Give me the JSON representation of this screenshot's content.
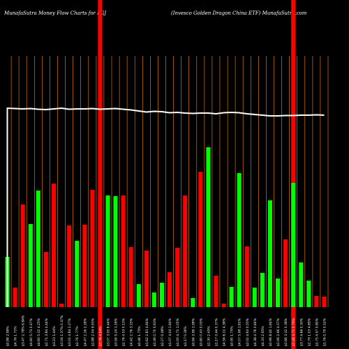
{
  "header": {
    "left": "MunafaSutra  Money Flow  Charts for PGJ",
    "right": "(Invesco  Golden  Dragon  China  ETF) MunafaSutra.com"
  },
  "colors": {
    "background": "#000000",
    "up": "#00ff00",
    "down": "#ff0000",
    "gridline": "#ff8c00",
    "price_line": "#ffffff",
    "highlight": "#ff0000",
    "label_text": "#ffffff"
  },
  "chart_data": {
    "type": "bar",
    "title": "",
    "categories": [
      "$0.88 2.98%",
      "$4.76 1.72%",
      "$3.47 2.78% 6.84%",
      "$4.60 5.73 0.47%",
      "$4.60 5.32 4.25%",
      "$2.71 3.84 4.44%",
      "$3.23 1.44%",
      "$1.04 1.37% 0.47%",
      "$3.01 4.84 2.27%",
      "$2.76 1.77%",
      "$4.47 2.16 2.28%",
      "$2.88 2.04 9.93%",
      "$3.76 4.04%",
      "$3.07 3.00 8.44%",
      "$3.94 5.24 1.18%",
      "$2.76 4.53 0.13%",
      "$4.42 2.76 3.25%",
      "$0.46 1.75%",
      "$1.62 2.83 4.84%",
      "$1.46 0.70 0.63%",
      "$2.27 0.48%",
      "$1.07 4.04 1.84%",
      "$1.00 4.71 1.05%",
      "$1.17 0.36%",
      "$0.84 3.96 1.98%",
      "$0.80 0.43 0.05%",
      "$2.30 2.45%",
      "$1.17 0.44 0.37%",
      "$4.56 6.11 4.38%",
      "$0.90 1.75%",
      "$4.07 5.98 1.81%",
      "$2.02 4.63 0.55%",
      "$4.38 4.76 0.84%",
      "$4.33 2.95%",
      "$0.96 8.40 1.84%",
      "$2.06 2.96 4.57%",
      "$2.66 3.32 0.38%",
      "$2.48 3.71 0.79%",
      "$3.77 4.66 0.30%",
      "$2.79 1.03 4.89%",
      "$1.75 4.57 0.80%",
      "$1.76 0.79 0.52%"
    ],
    "values": [
      72,
      28,
      147,
      119,
      167,
      79,
      177,
      5,
      117,
      95,
      118,
      168,
      159,
      160,
      159,
      160,
      86,
      33,
      81,
      21,
      35,
      50,
      85,
      160,
      13,
      194,
      229,
      45,
      5,
      29,
      192,
      87,
      28,
      49,
      153,
      41,
      97,
      178,
      64,
      38,
      16,
      15
    ],
    "directions": [
      "up",
      "down",
      "down",
      "up",
      "up",
      "down",
      "down",
      "down",
      "down",
      "up",
      "down",
      "down",
      "down",
      "up",
      "up",
      "down",
      "down",
      "up",
      "down",
      "up",
      "up",
      "down",
      "down",
      "down",
      "up",
      "down",
      "up",
      "down",
      "down",
      "up",
      "up",
      "down",
      "up",
      "up",
      "up",
      "up",
      "down",
      "up",
      "up",
      "up",
      "down",
      "down"
    ],
    "price_line": [
      1.0,
      0.99,
      0.98,
      0.99,
      0.97,
      0.96,
      0.98,
      1.0,
      0.97,
      0.98,
      0.98,
      0.99,
      0.97,
      0.98,
      0.99,
      0.97,
      0.95,
      0.92,
      0.89,
      0.91,
      0.9,
      0.87,
      0.88,
      0.86,
      0.85,
      0.86,
      0.86,
      0.84,
      0.87,
      0.88,
      0.87,
      0.84,
      0.82,
      0.8,
      0.78,
      0.78,
      0.79,
      0.79,
      0.8,
      0.8,
      0.81,
      0.8
    ],
    "highlight_columns": [
      12,
      37
    ],
    "grid": true
  }
}
